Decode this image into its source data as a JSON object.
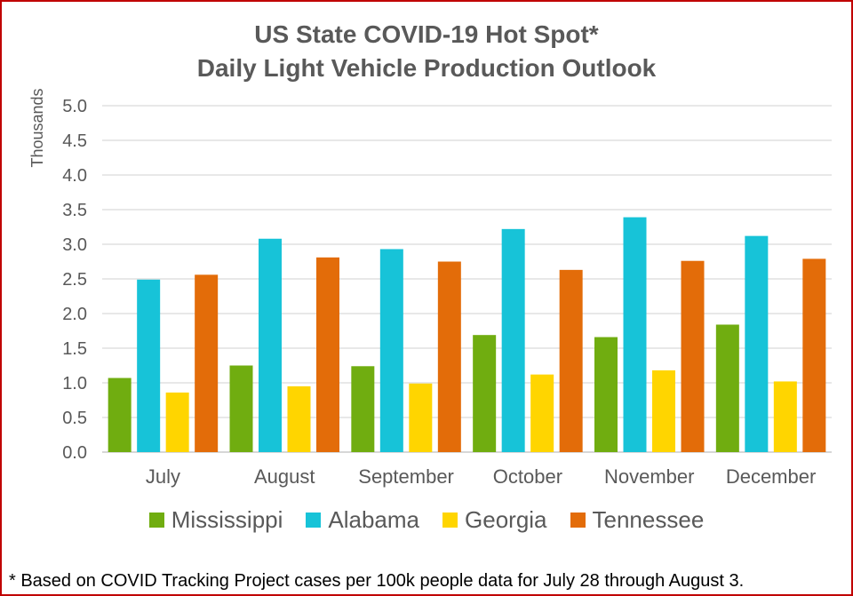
{
  "chart_data": {
    "type": "bar",
    "title": "US State COVID-19 Hot Spot*",
    "subtitle": "Daily Light Vehicle Production Outlook",
    "xlabel": "",
    "ylabel": "Thousands",
    "ylim": [
      0,
      5.0
    ],
    "yticks": [
      "0.0",
      "0.5",
      "1.0",
      "1.5",
      "2.0",
      "2.5",
      "3.0",
      "3.5",
      "4.0",
      "4.5",
      "5.0"
    ],
    "grid": true,
    "legend_position": "bottom",
    "categories": [
      "July",
      "August",
      "September",
      "October",
      "November",
      "December"
    ],
    "series": [
      {
        "name": "Mississippi",
        "color": "#70ad10",
        "values": [
          1.07,
          1.25,
          1.24,
          1.69,
          1.66,
          1.84
        ]
      },
      {
        "name": "Alabama",
        "color": "#17c3d8",
        "values": [
          2.49,
          3.08,
          2.93,
          3.22,
          3.39,
          3.12
        ]
      },
      {
        "name": "Georgia",
        "color": "#ffd500",
        "values": [
          0.86,
          0.95,
          0.99,
          1.12,
          1.18,
          1.02
        ]
      },
      {
        "name": "Tennessee",
        "color": "#e36c09",
        "values": [
          2.56,
          2.81,
          2.75,
          2.63,
          2.76,
          2.79
        ]
      }
    ]
  },
  "footnote": "* Based on COVID Tracking Project cases per 100k people data for July 28 through August 3.",
  "colors": {
    "frame_border": "#c00000",
    "text": "#595959",
    "gridline": "#d9d9d9"
  }
}
